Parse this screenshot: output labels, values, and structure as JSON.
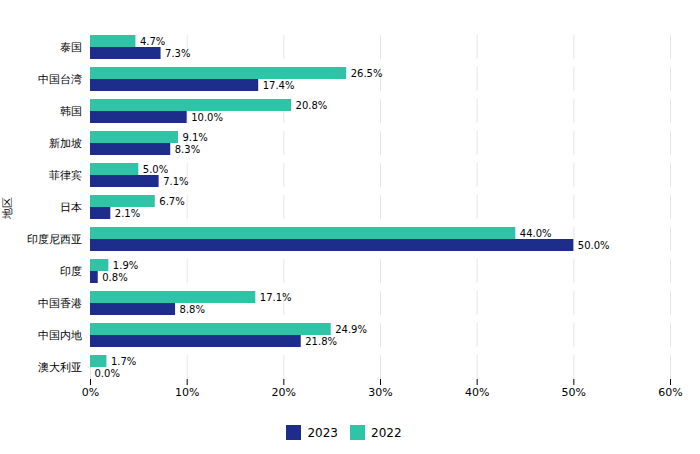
{
  "chart_data": {
    "type": "bar",
    "orientation": "horizontal",
    "categories": [
      "泰国",
      "中国台湾",
      "韩国",
      "新加坡",
      "菲律宾",
      "日本",
      "印度尼西亚",
      "印度",
      "中国香港",
      "中国内地",
      "澳大利亚"
    ],
    "series": [
      {
        "name": "2023",
        "color": "#1f2d8a",
        "values": [
          7.3,
          17.4,
          10.0,
          8.3,
          7.1,
          2.1,
          50.0,
          0.8,
          8.8,
          21.8,
          0.0
        ],
        "value_labels": [
          "7.3%",
          "17.4%",
          "10.0%",
          "8.3%",
          "7.1%",
          "2.1%",
          "50.0%",
          "0.8%",
          "8.8%",
          "21.8%",
          "0.0%"
        ]
      },
      {
        "name": "2022",
        "color": "#2ec4a5",
        "values": [
          4.7,
          26.5,
          20.8,
          9.1,
          5.0,
          6.7,
          44.0,
          1.9,
          17.1,
          24.9,
          1.7
        ],
        "value_labels": [
          "4.7%",
          "26.5%",
          "20.8%",
          "9.1%",
          "5.0%",
          "6.7%",
          "44.0%",
          "1.9%",
          "17.1%",
          "24.9%",
          "1.7%"
        ]
      }
    ],
    "ylabel": "地区",
    "xlim": [
      0,
      60
    ],
    "xticks": [
      {
        "value": 0,
        "label": "0%"
      },
      {
        "value": 10,
        "label": "10%"
      },
      {
        "value": 20,
        "label": "20%"
      },
      {
        "value": 30,
        "label": "30%"
      },
      {
        "value": 40,
        "label": "40%"
      },
      {
        "value": 50,
        "label": "50%"
      },
      {
        "value": 60,
        "label": "60%"
      }
    ],
    "grid": true,
    "legend": "bottom",
    "data_labels": true
  }
}
